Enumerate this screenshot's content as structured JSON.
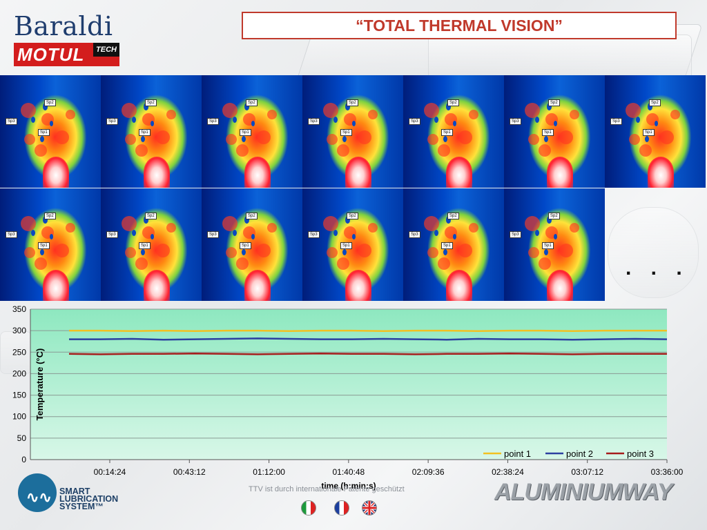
{
  "header": {
    "brand": "Baraldi",
    "motul": "MOTUL",
    "tech": "TECH",
    "title": "“TOTAL THERMAL VISION”"
  },
  "thermal": {
    "spot_labels": [
      "Sp1",
      "Sp2",
      "Sp3"
    ],
    "row1_count": 7,
    "row2_count": 6,
    "ellipsis": ". . ."
  },
  "chart_data": {
    "type": "line",
    "ylabel": "Temperature (°C)",
    "xlabel": "time (h:min:s)",
    "ylim": [
      0,
      350
    ],
    "yticks": [
      "0",
      "50",
      "100",
      "150",
      "200",
      "250",
      "300",
      "350"
    ],
    "xticks": [
      "00:14:24",
      "00:43:12",
      "01:12:00",
      "01:40:48",
      "02:09:36",
      "02:38:24",
      "03:07:12",
      "03:36:00"
    ],
    "legend_position": "bottom-right",
    "grid": true,
    "series": [
      {
        "name": "point 1",
        "color": "#f2c021",
        "values": [
          300,
          300,
          299,
          300,
          299,
          300,
          300,
          299,
          300,
          300,
          299,
          300,
          300,
          299,
          300,
          300,
          299,
          300,
          300,
          300
        ]
      },
      {
        "name": "point 2",
        "color": "#2c3fa0",
        "values": [
          280,
          280,
          281,
          279,
          280,
          281,
          282,
          281,
          280,
          280,
          281,
          280,
          279,
          281,
          280,
          280,
          279,
          280,
          281,
          280
        ]
      },
      {
        "name": "point 3",
        "color": "#a61c1c",
        "values": [
          246,
          245,
          246,
          246,
          247,
          246,
          245,
          246,
          247,
          246,
          246,
          245,
          246,
          246,
          247,
          246,
          245,
          246,
          246,
          246
        ]
      }
    ]
  },
  "footer": {
    "patent_note": "TTV ist durch internationale Patente geschützt",
    "sls_line1": "SMART",
    "sls_line2": "LUBRICATION",
    "sls_line3": "SYSTEM™",
    "aluminium": "ALUMINIUMWAY",
    "flags": [
      "italian-flag",
      "french-flag",
      "uk-flag"
    ]
  }
}
